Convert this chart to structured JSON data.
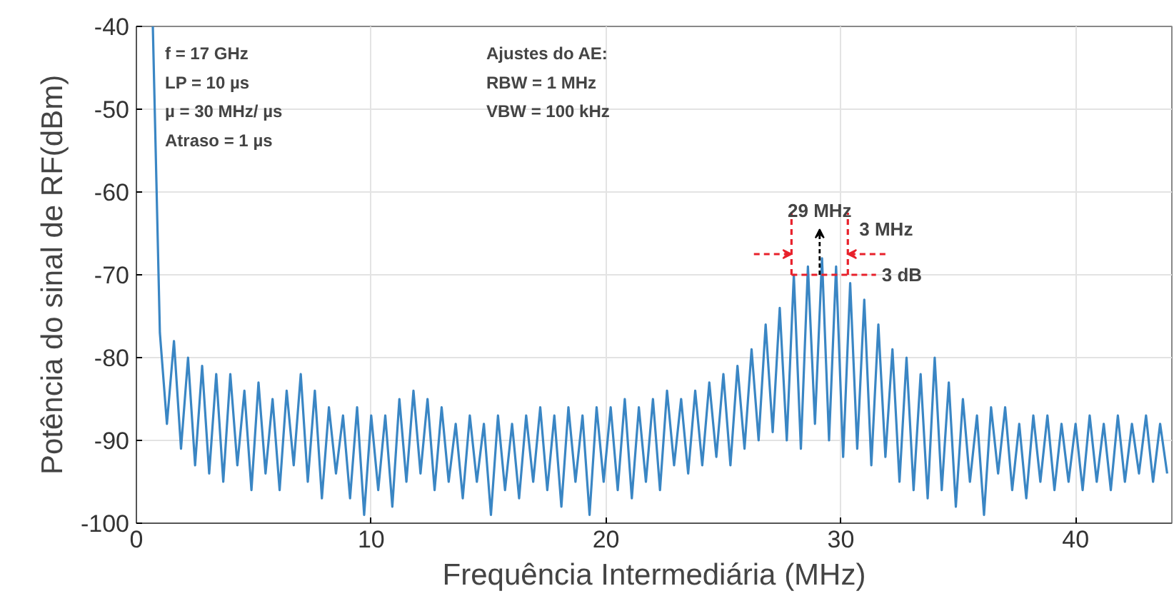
{
  "chart_data": {
    "type": "line",
    "xlabel": "Frequência Intermediária (MHz)",
    "ylabel": "Potência do sinal de RF(dBm)",
    "xlim": [
      0,
      44.1
    ],
    "ylim": [
      -100,
      -40
    ],
    "xticks": [
      0,
      10,
      20,
      30,
      40
    ],
    "yticks": [
      -100,
      -90,
      -80,
      -70,
      -60,
      -50,
      -40
    ],
    "grid": true,
    "marker": "none",
    "line_style": "solid",
    "series": [
      {
        "color": "#3a86c4",
        "x": [
          0.7,
          1.0,
          1.3,
          1.6,
          1.9,
          2.2,
          2.5,
          2.8,
          3.1,
          3.4,
          3.7,
          4.0,
          4.3,
          4.6,
          4.9,
          5.2,
          5.5,
          5.8,
          6.1,
          6.4,
          6.7,
          7.0,
          7.3,
          7.6,
          7.9,
          8.2,
          8.5,
          8.8,
          9.1,
          9.4,
          9.7,
          10.0,
          10.3,
          10.6,
          10.9,
          11.2,
          11.5,
          11.8,
          12.1,
          12.4,
          12.7,
          13.0,
          13.3,
          13.6,
          13.9,
          14.2,
          14.5,
          14.8,
          15.1,
          15.4,
          15.7,
          16.0,
          16.3,
          16.6,
          16.9,
          17.2,
          17.5,
          17.8,
          18.1,
          18.4,
          18.7,
          19.0,
          19.3,
          19.6,
          19.9,
          20.2,
          20.5,
          20.8,
          21.1,
          21.4,
          21.7,
          22.0,
          22.3,
          22.6,
          22.9,
          23.2,
          23.5,
          23.8,
          24.1,
          24.4,
          24.7,
          25.0,
          25.3,
          25.6,
          25.9,
          26.2,
          26.5,
          26.8,
          27.1,
          27.4,
          27.7,
          28.0,
          28.3,
          28.6,
          28.9,
          29.2,
          29.5,
          29.8,
          30.1,
          30.4,
          30.7,
          31.0,
          31.3,
          31.6,
          31.9,
          32.2,
          32.5,
          32.8,
          33.1,
          33.4,
          33.7,
          34.0,
          34.3,
          34.6,
          34.9,
          35.2,
          35.5,
          35.8,
          36.1,
          36.4,
          36.7,
          37.0,
          37.3,
          37.6,
          37.9,
          38.2,
          38.5,
          38.8,
          39.1,
          39.4,
          39.7,
          40.0,
          40.3,
          40.6,
          40.9,
          41.2,
          41.5,
          41.8,
          42.1,
          42.4,
          42.7,
          43.0,
          43.3,
          43.6,
          43.9
        ],
        "values": [
          -40,
          -77,
          -88,
          -78,
          -91,
          -80,
          -93,
          -81,
          -94,
          -82,
          -95,
          -82,
          -93,
          -84,
          -96,
          -83,
          -94,
          -85,
          -96,
          -84,
          -93,
          -82,
          -95,
          -84,
          -97,
          -86,
          -94,
          -87,
          -97,
          -86,
          -99,
          -87,
          -96,
          -87,
          -98,
          -85,
          -95,
          -84,
          -94,
          -85,
          -96,
          -86,
          -95,
          -88,
          -97,
          -87,
          -95,
          -88,
          -99,
          -87,
          -96,
          -88,
          -97,
          -87,
          -95,
          -86,
          -96,
          -87,
          -98,
          -86,
          -95,
          -87,
          -99,
          -86,
          -95,
          -86,
          -96,
          -85,
          -97,
          -86,
          -95,
          -85,
          -96,
          -84,
          -93,
          -85,
          -94,
          -84,
          -93,
          -83,
          -92,
          -82,
          -93,
          -81,
          -91,
          -79,
          -90,
          -76,
          -89,
          -74,
          -90,
          -70,
          -91,
          -69,
          -88,
          -68,
          -90,
          -69,
          -92,
          -71,
          -91,
          -73,
          -93,
          -76,
          -92,
          -79,
          -95,
          -80,
          -96,
          -82,
          -97,
          -80,
          -96,
          -83,
          -98,
          -85,
          -95,
          -87,
          -99,
          -86,
          -94,
          -86,
          -96,
          -88,
          -97,
          -87,
          -95,
          -87,
          -96,
          -88,
          -95,
          -88,
          -96,
          -87,
          -95,
          -88,
          -96,
          -87,
          -95,
          -88,
          -94,
          -87,
          -95,
          -88,
          -94
        ]
      }
    ],
    "ref_lines": [
      {
        "axis": "x",
        "value": 27.9,
        "label": null,
        "color": "#e8212b",
        "line_style": "dashed"
      },
      {
        "axis": "x",
        "value": 30.3,
        "label": "3 MHz",
        "color": "#e8212b",
        "line_style": "dashed"
      },
      {
        "axis": "y",
        "value": -70,
        "label": "3 dB",
        "color": "#e8212b",
        "line_style": "dashed"
      }
    ],
    "annotations": [
      "f = 17 GHz\nLP = 10 µs\nµ = 30 MHz/ µs\nAtraso = 1 µs",
      "Ajustes do AE:\nRBW = 1 MHz\nVBW = 100 kHz",
      {
        "text": "29 MHz",
        "x": 29.1,
        "y": -70
      }
    ]
  }
}
